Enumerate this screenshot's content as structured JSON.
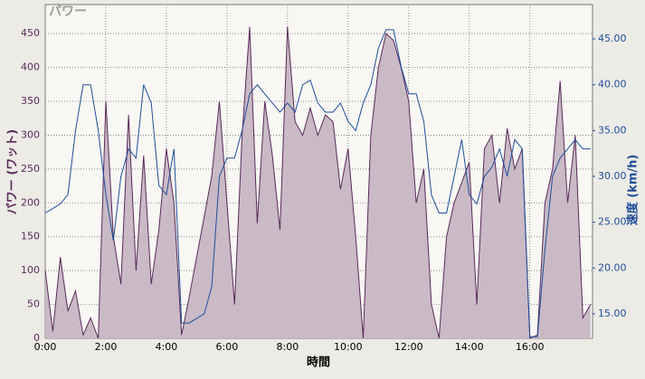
{
  "chart_data": {
    "type": "area_line",
    "title": "パワー",
    "y_label": "パワー (ワット)",
    "y2_label": "速度 (km/h)",
    "x_label": "時間",
    "x": [
      0,
      0.25,
      0.5,
      0.75,
      1,
      1.25,
      1.5,
      1.75,
      2,
      2.25,
      2.5,
      2.75,
      3,
      3.25,
      3.5,
      3.75,
      4,
      4.25,
      4.5,
      4.75,
      5,
      5.25,
      5.5,
      5.75,
      6,
      6.25,
      6.5,
      6.75,
      7,
      7.25,
      7.5,
      7.75,
      8,
      8.25,
      8.5,
      8.75,
      9,
      9.25,
      9.5,
      9.75,
      10,
      10.25,
      10.5,
      10.75,
      11,
      11.25,
      11.5,
      11.75,
      12,
      12.25,
      12.5,
      12.75,
      13,
      13.25,
      13.5,
      13.75,
      14,
      14.25,
      14.5,
      14.75,
      15,
      15.25,
      15.5,
      15.75,
      16,
      16.25,
      16.5,
      16.75,
      17,
      17.25,
      17.5,
      17.75,
      18
    ],
    "series": [
      {
        "color": "#5a2a5a",
        "fill": "#c9bac6",
        "values": [
          100,
          10,
          120,
          40,
          70,
          5,
          30,
          0,
          350,
          150,
          80,
          330,
          100,
          270,
          80,
          160,
          280,
          200,
          5,
          60,
          120,
          180,
          240,
          350,
          200,
          50,
          300,
          460,
          170,
          350,
          270,
          160,
          460,
          320,
          300,
          340,
          300,
          330,
          320,
          220,
          280,
          150,
          0,
          300,
          400,
          450,
          440,
          400,
          350,
          200,
          250,
          50,
          0,
          150,
          200,
          230,
          260,
          50,
          280,
          300,
          200,
          310,
          250,
          280,
          0,
          5,
          200,
          250,
          380,
          200,
          300,
          30,
          50
        ]
      },
      {
        "color": "#1f4e9a",
        "axis": "y2",
        "values": [
          26,
          26.5,
          27,
          28,
          35,
          40,
          40,
          35,
          28,
          23,
          30,
          33,
          32,
          40,
          38,
          29,
          28,
          33,
          14,
          14,
          14.5,
          15,
          18,
          30,
          32,
          32,
          35,
          39,
          40,
          39,
          38,
          37,
          38,
          37,
          40,
          40.5,
          38,
          37,
          37,
          38,
          36,
          35,
          38,
          40,
          44,
          46,
          46,
          42,
          39,
          39,
          36,
          28,
          26,
          26,
          30,
          34,
          28,
          27,
          30,
          31,
          33,
          30,
          34,
          33,
          12.5,
          12.5,
          22,
          30,
          32,
          33,
          34,
          33,
          33
        ]
      }
    ],
    "xlim": [
      0,
      18.07
    ],
    "xticks": [
      {
        "value": 0,
        "label": "0:00"
      },
      {
        "value": 2,
        "label": "2:00"
      },
      {
        "value": 4,
        "label": "4:00"
      },
      {
        "value": 6,
        "label": "6:00"
      },
      {
        "value": 8,
        "label": "8:00"
      },
      {
        "value": 10,
        "label": "10:00"
      },
      {
        "value": 12,
        "label": "12:00"
      },
      {
        "value": 14,
        "label": "14:00"
      },
      {
        "value": 16,
        "label": "16:00"
      }
    ],
    "ylim": [
      0,
      493
    ],
    "yticks": [
      0,
      50,
      100,
      150,
      200,
      250,
      300,
      350,
      400,
      450
    ],
    "y2lim": [
      12.33,
      48.75
    ],
    "y2ticks": [
      {
        "value": 15,
        "label": "15.00"
      },
      {
        "value": 20,
        "label": "20.00"
      },
      {
        "value": 25,
        "label": "25.00"
      },
      {
        "value": 30,
        "label": "30.00"
      },
      {
        "value": 35,
        "label": "35.00"
      },
      {
        "value": 40,
        "label": "40.00"
      },
      {
        "value": 45,
        "label": "45.00"
      }
    ],
    "grid": true
  }
}
